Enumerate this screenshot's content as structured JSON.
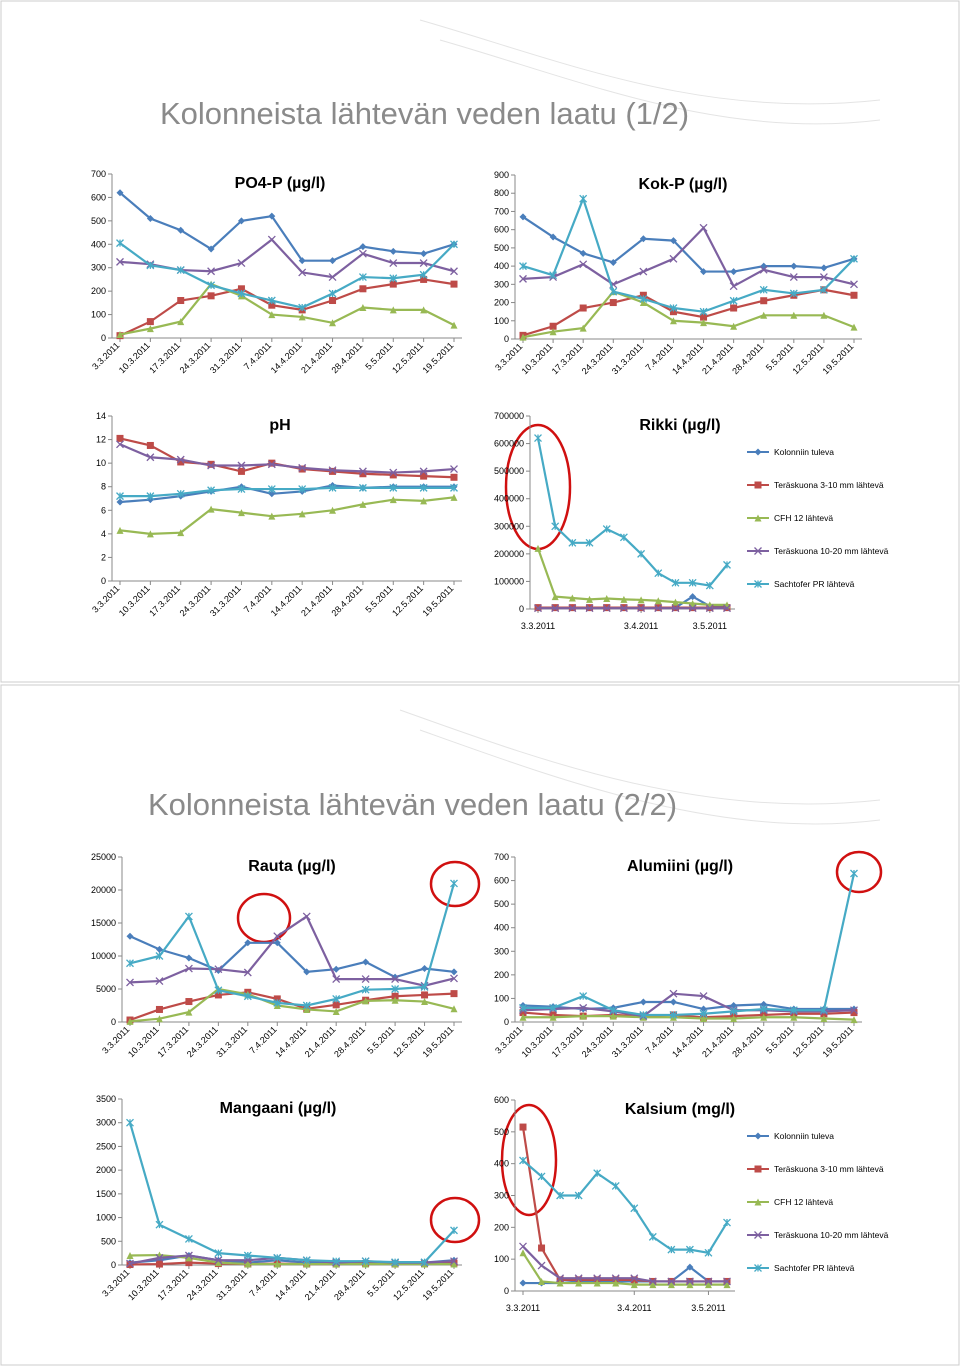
{
  "slides": [
    {
      "title": "Kolonneista lähtevän veden laatu (1/2)"
    },
    {
      "title": "Kolonneista lähtevän veden laatu (2/2)"
    }
  ],
  "chart_data": [
    {
      "type": "line",
      "title": "PO4-P (µg/l)",
      "categories": [
        "3.3.2011",
        "10.3.2011",
        "17.3.2011",
        "24.3.2011",
        "31.3.2011",
        "7.4.2011",
        "14.4.2011",
        "21.4.2011",
        "28.4.2011",
        "5.5.2011",
        "12.5.2011",
        "19.5.2011"
      ],
      "ylim": [
        0,
        700
      ],
      "yticks": [
        0,
        100,
        200,
        300,
        400,
        500,
        600,
        700
      ],
      "series": [
        {
          "color": "#4a7ebb",
          "values": [
            620,
            510,
            460,
            380,
            500,
            520,
            330,
            330,
            390,
            370,
            360,
            400
          ]
        },
        {
          "color": "#be4b48",
          "values": [
            10,
            70,
            160,
            180,
            210,
            140,
            120,
            160,
            210,
            230,
            250,
            230
          ]
        },
        {
          "color": "#98b954",
          "values": [
            15,
            40,
            70,
            230,
            180,
            100,
            90,
            65,
            130,
            120,
            120,
            55
          ]
        },
        {
          "color": "#7d60a0",
          "values": [
            325,
            315,
            290,
            285,
            320,
            420,
            280,
            260,
            360,
            320,
            320,
            285
          ]
        },
        {
          "color": "#46aac5",
          "values": [
            405,
            310,
            290,
            225,
            190,
            160,
            130,
            190,
            260,
            255,
            270,
            400
          ]
        }
      ]
    },
    {
      "type": "line",
      "title": "Kok-P (µg/l)",
      "categories": [
        "3.3.2011",
        "10.3.2011",
        "17.3.2011",
        "24.3.2011",
        "31.3.2011",
        "7.4.2011",
        "14.4.2011",
        "21.4.2011",
        "28.4.2011",
        "5.5.2011",
        "12.5.2011",
        "19.5.2011"
      ],
      "ylim": [
        0,
        900
      ],
      "yticks": [
        0,
        100,
        200,
        300,
        400,
        500,
        600,
        700,
        800,
        900
      ],
      "series": [
        {
          "color": "#4a7ebb",
          "values": [
            670,
            560,
            470,
            420,
            550,
            540,
            370,
            370,
            400,
            400,
            390,
            440
          ]
        },
        {
          "color": "#be4b48",
          "values": [
            20,
            70,
            170,
            200,
            240,
            150,
            120,
            170,
            210,
            240,
            270,
            240
          ]
        },
        {
          "color": "#98b954",
          "values": [
            10,
            40,
            60,
            260,
            200,
            100,
            90,
            70,
            130,
            130,
            130,
            65
          ]
        },
        {
          "color": "#7d60a0",
          "values": [
            330,
            340,
            410,
            300,
            370,
            440,
            610,
            290,
            380,
            340,
            340,
            300
          ]
        },
        {
          "color": "#46aac5",
          "values": [
            400,
            350,
            770,
            260,
            220,
            170,
            150,
            210,
            270,
            250,
            270,
            440
          ]
        }
      ]
    },
    {
      "type": "line",
      "title": "pH",
      "categories": [
        "3.3.2011",
        "10.3.2011",
        "17.3.2011",
        "24.3.2011",
        "31.3.2011",
        "7.4.2011",
        "14.4.2011",
        "21.4.2011",
        "28.4.2011",
        "5.5.2011",
        "12.5.2011",
        "19.5.2011"
      ],
      "ylim": [
        0,
        14
      ],
      "yticks": [
        0,
        2,
        4,
        6,
        8,
        10,
        12,
        14
      ],
      "series": [
        {
          "color": "#4a7ebb",
          "values": [
            6.7,
            6.9,
            7.2,
            7.6,
            8.0,
            7.4,
            7.6,
            8.1,
            7.9,
            8.0,
            8.0,
            8.0
          ]
        },
        {
          "color": "#be4b48",
          "values": [
            12.1,
            11.5,
            10.1,
            9.9,
            9.3,
            10.0,
            9.5,
            9.3,
            9.1,
            9.0,
            8.9,
            8.8
          ]
        },
        {
          "color": "#98b954",
          "values": [
            4.3,
            4.0,
            4.1,
            6.1,
            5.8,
            5.5,
            5.7,
            6.0,
            6.5,
            6.9,
            6.8,
            7.1
          ]
        },
        {
          "color": "#7d60a0",
          "values": [
            11.6,
            10.5,
            10.3,
            9.8,
            9.8,
            9.9,
            9.6,
            9.4,
            9.3,
            9.2,
            9.3,
            9.5
          ]
        },
        {
          "color": "#46aac5",
          "values": [
            7.2,
            7.2,
            7.4,
            7.7,
            7.8,
            7.8,
            7.8,
            7.9,
            7.9,
            7.9,
            7.9,
            7.9
          ]
        }
      ]
    },
    {
      "type": "line",
      "title": "Rikki (µg/l)",
      "legend": "right",
      "categories": [
        "3.3.2011",
        null,
        null,
        null,
        null,
        null,
        "3.4.2011",
        null,
        null,
        null,
        "3.5.2011",
        null
      ],
      "ylim": [
        0,
        700000
      ],
      "yticks": [
        0,
        100000,
        200000,
        300000,
        400000,
        500000,
        600000,
        700000
      ],
      "series": [
        {
          "name": "Kolonniin tuleva",
          "color": "#4a7ebb",
          "values": [
            5000,
            5000,
            5000,
            5000,
            5000,
            5000,
            5000,
            5000,
            5000,
            45000,
            10000,
            10000
          ]
        },
        {
          "name": "Teräskuona 3-10 mm lähtevä",
          "color": "#be4b48",
          "values": [
            5000,
            5000,
            5000,
            5000,
            5000,
            5000,
            5000,
            5000,
            5000,
            5000,
            5000,
            5000
          ]
        },
        {
          "name": "CFH 12 lähtevä",
          "color": "#98b954",
          "values": [
            220000,
            45000,
            40000,
            35000,
            38000,
            35000,
            33000,
            30000,
            25000,
            20000,
            15000,
            15000
          ]
        },
        {
          "name": "Teräskuona 10-20 mm lähtevä",
          "color": "#7d60a0",
          "values": [
            3000,
            3000,
            3000,
            3000,
            3000,
            3000,
            3000,
            3000,
            3000,
            3000,
            3000,
            3000
          ]
        },
        {
          "name": "Sachtofer PR lähtevä",
          "color": "#46aac5",
          "values": [
            620000,
            300000,
            240000,
            240000,
            290000,
            260000,
            200000,
            130000,
            95000,
            95000,
            85000,
            160000
          ]
        }
      ]
    },
    {
      "type": "line",
      "title": "Rauta (µg/l)",
      "categories": [
        "3.3.2011",
        "10.3.2011",
        "17.3.2011",
        "24.3.2011",
        "31.3.2011",
        "7.4.2011",
        "14.4.2011",
        "21.4.2011",
        "28.4.2011",
        "5.5.2011",
        "12.5.2011",
        "19.5.2011"
      ],
      "ylim": [
        0,
        25000
      ],
      "yticks": [
        0,
        5000,
        10000,
        15000,
        20000,
        25000
      ],
      "series": [
        {
          "color": "#4a7ebb",
          "values": [
            13000,
            11000,
            9700,
            7800,
            12000,
            12000,
            7600,
            8000,
            9100,
            6800,
            8100,
            7600
          ]
        },
        {
          "color": "#be4b48",
          "values": [
            300,
            1900,
            3100,
            4100,
            4500,
            3500,
            2000,
            2600,
            3300,
            3900,
            4100,
            4300
          ]
        },
        {
          "color": "#98b954",
          "values": [
            100,
            500,
            1500,
            5000,
            4200,
            2500,
            1900,
            1600,
            3200,
            3300,
            3100,
            2000
          ]
        },
        {
          "color": "#7d60a0",
          "values": [
            6000,
            6200,
            8100,
            8000,
            7500,
            13000,
            16000,
            6500,
            6500,
            6500,
            5500,
            6600
          ]
        },
        {
          "color": "#46aac5",
          "values": [
            8900,
            10000,
            16000,
            4800,
            3900,
            2900,
            2500,
            3500,
            4900,
            5000,
            5300,
            21000
          ]
        }
      ]
    },
    {
      "type": "line",
      "title": "Alumiini (µg/l)",
      "categories": [
        "3.3.2011",
        "10.3.2011",
        "17.3.2011",
        "24.3.2011",
        "31.3.2011",
        "7.4.2011",
        "14.4.2011",
        "21.4.2011",
        "28.4.2011",
        "5.5.2011",
        "12.5.2011",
        "19.5.2011"
      ],
      "ylim": [
        0,
        700
      ],
      "yticks": [
        0,
        100,
        200,
        300,
        400,
        500,
        600,
        700
      ],
      "series": [
        {
          "color": "#4a7ebb",
          "values": [
            70,
            65,
            55,
            60,
            85,
            85,
            55,
            70,
            75,
            55,
            55,
            55
          ]
        },
        {
          "color": "#be4b48",
          "values": [
            40,
            30,
            25,
            30,
            25,
            30,
            20,
            25,
            30,
            35,
            35,
            40
          ]
        },
        {
          "color": "#98b954",
          "values": [
            20,
            20,
            25,
            25,
            20,
            20,
            15,
            15,
            20,
            20,
            15,
            10
          ]
        },
        {
          "color": "#7d60a0",
          "values": [
            50,
            55,
            60,
            45,
            25,
            120,
            110,
            50,
            50,
            45,
            45,
            50
          ]
        },
        {
          "color": "#46aac5",
          "values": [
            60,
            60,
            110,
            50,
            30,
            30,
            35,
            45,
            55,
            50,
            50,
            630
          ]
        }
      ]
    },
    {
      "type": "line",
      "title": "Mangaani (µg/l)",
      "categories": [
        "3.3.2011",
        "10.3.2011",
        "17.3.2011",
        "24.3.2011",
        "31.3.2011",
        "7.4.2011",
        "14.4.2011",
        "21.4.2011",
        "28.4.2011",
        "5.5.2011",
        "12.5.2011",
        "19.5.2011"
      ],
      "ylim": [
        0,
        3500
      ],
      "yticks": [
        0,
        500,
        1000,
        1500,
        2000,
        2500,
        3000,
        3500
      ],
      "series": [
        {
          "color": "#4a7ebb",
          "values": [
            50,
            100,
            200,
            100,
            50,
            100,
            50,
            50,
            50,
            50,
            50,
            100
          ]
        },
        {
          "color": "#be4b48",
          "values": [
            10,
            20,
            50,
            30,
            20,
            30,
            20,
            20,
            30,
            20,
            30,
            40
          ]
        },
        {
          "color": "#98b954",
          "values": [
            200,
            210,
            150,
            50,
            20,
            20,
            20,
            20,
            20,
            20,
            20,
            20
          ]
        },
        {
          "color": "#7d60a0",
          "values": [
            30,
            150,
            200,
            100,
            100,
            150,
            100,
            50,
            80,
            50,
            50,
            80
          ]
        },
        {
          "color": "#46aac5",
          "values": [
            3000,
            850,
            550,
            250,
            200,
            150,
            100,
            80,
            80,
            60,
            60,
            730
          ]
        }
      ]
    },
    {
      "type": "line",
      "title": "Kalsium (mg/l)",
      "legend": "right",
      "categories": [
        "3.3.2011",
        null,
        null,
        null,
        null,
        null,
        "3.4.2011",
        null,
        null,
        null,
        "3.5.2011",
        null
      ],
      "ylim": [
        0,
        600
      ],
      "yticks": [
        0,
        100,
        200,
        300,
        400,
        500,
        600
      ],
      "series": [
        {
          "name": "Kolonniin tuleva",
          "color": "#4a7ebb",
          "values": [
            25,
            25,
            25,
            30,
            30,
            30,
            30,
            30,
            30,
            75,
            30,
            30
          ]
        },
        {
          "name": "Teräskuona 3-10 mm lähtevä",
          "color": "#be4b48",
          "values": [
            515,
            135,
            35,
            35,
            35,
            35,
            35,
            30,
            30,
            30,
            30,
            30
          ]
        },
        {
          "name": "CFH 12 lähtevä",
          "color": "#98b954",
          "values": [
            120,
            30,
            25,
            25,
            25,
            25,
            20,
            20,
            20,
            20,
            20,
            20
          ]
        },
        {
          "name": "Teräskuona 10-20 mm lähtevä",
          "color": "#7d60a0",
          "values": [
            140,
            80,
            40,
            40,
            40,
            40,
            40,
            30,
            30,
            30,
            30,
            30
          ]
        },
        {
          "name": "Sachtofer PR lähtevä",
          "color": "#46aac5",
          "values": [
            410,
            360,
            300,
            300,
            370,
            330,
            260,
            170,
            130,
            130,
            120,
            215
          ]
        }
      ]
    }
  ]
}
